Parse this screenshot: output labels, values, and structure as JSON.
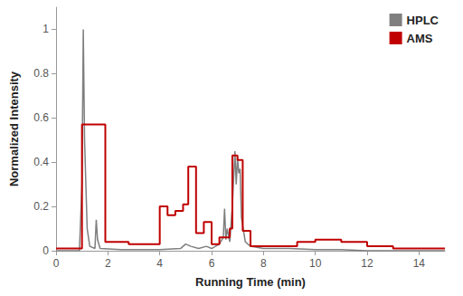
{
  "chart_data": {
    "type": "line",
    "x_label": "Running Time (min)",
    "y_label": "Normalized Intensity",
    "xlim": [
      0,
      15
    ],
    "xticks": [
      0,
      2,
      4,
      6,
      8,
      10,
      12,
      14
    ],
    "ylim": [
      0,
      1.1
    ],
    "yticks": [
      0,
      0.2,
      0.4,
      0.6,
      0.8,
      1
    ],
    "grid": false,
    "legend": "upper right",
    "series": [
      {
        "name": "HPLC",
        "color": "#7f7f7f",
        "line_style": "solid",
        "x": [
          0,
          0.9,
          1.0,
          1.05,
          1.1,
          1.2,
          1.3,
          1.5,
          1.55,
          1.6,
          1.7,
          2.5,
          4.0,
          4.8,
          5.0,
          5.2,
          5.5,
          5.8,
          6.0,
          6.3,
          6.45,
          6.5,
          6.55,
          6.6,
          6.7,
          6.8,
          6.9,
          6.95,
          7.0,
          7.05,
          7.1,
          7.15,
          7.3,
          7.5,
          8.0,
          9.0,
          10.0,
          11.0,
          12.0,
          15.0
        ],
        "values": [
          0,
          0,
          0.3,
          1.0,
          0.5,
          0.1,
          0.02,
          0.01,
          0.14,
          0.05,
          0.01,
          0.005,
          0.005,
          0.01,
          0.03,
          0.02,
          0.01,
          0.02,
          0.01,
          0.03,
          0.06,
          0.19,
          0.05,
          0.1,
          0.04,
          0.2,
          0.45,
          0.3,
          0.42,
          0.35,
          0.37,
          0.15,
          0.04,
          0.02,
          0.01,
          0.01,
          0.005,
          0.005,
          0,
          0
        ]
      },
      {
        "name": "AMS",
        "color": "#c00000",
        "line_style": "step",
        "x": [
          0,
          1.0,
          1.9,
          2.8,
          4.0,
          4.3,
          4.6,
          4.9,
          5.1,
          5.4,
          5.7,
          6.0,
          6.3,
          6.7,
          6.8,
          7.0,
          7.2,
          7.5,
          9.3,
          10.0,
          11.0,
          12.0,
          13.0,
          15.0
        ],
        "values": [
          0.01,
          0.57,
          0.04,
          0.03,
          0.2,
          0.16,
          0.18,
          0.21,
          0.38,
          0.08,
          0.13,
          0.03,
          0.06,
          0.1,
          0.43,
          0.41,
          0.09,
          0.02,
          0.04,
          0.05,
          0.04,
          0.02,
          0.01,
          0.01
        ]
      }
    ]
  }
}
